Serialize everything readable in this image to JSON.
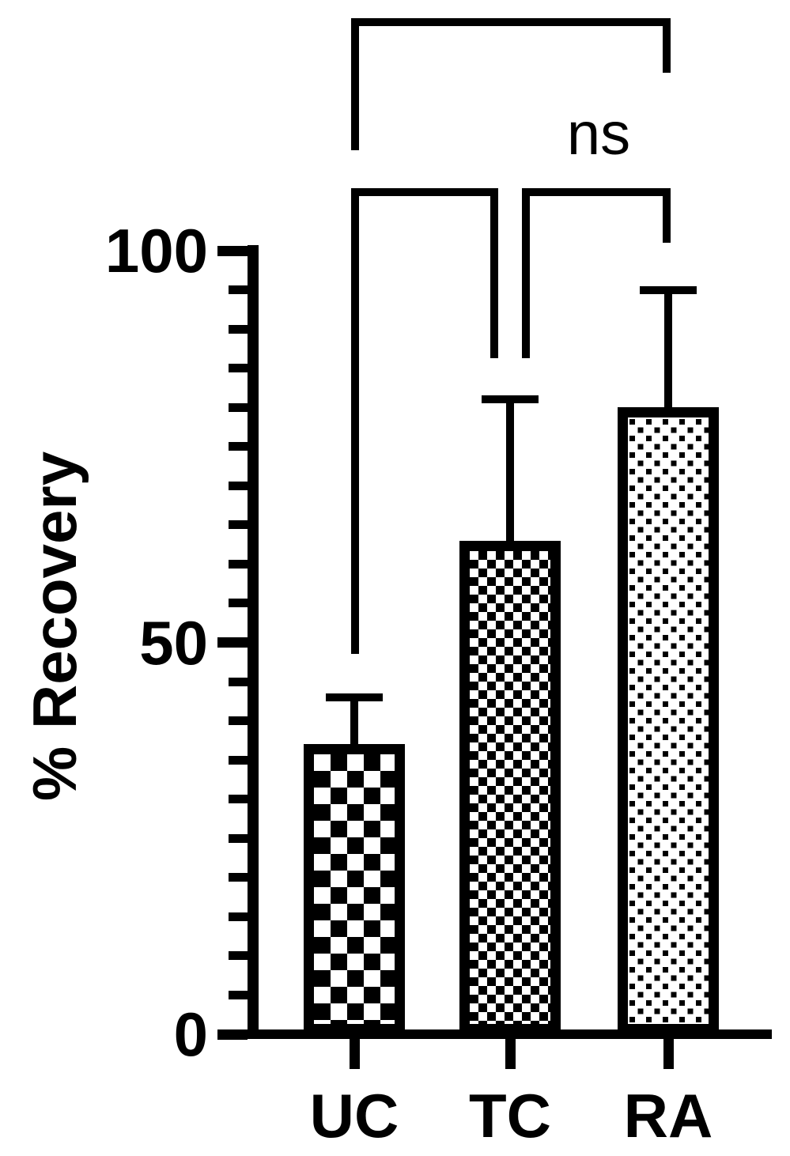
{
  "chart_data": {
    "type": "bar",
    "title": "",
    "ylabel": "% Recovery",
    "categories": [
      "UC",
      "TC",
      "RA"
    ],
    "values": [
      37,
      63,
      80
    ],
    "error_bar_tops": [
      43,
      81,
      95
    ],
    "error_bar_style": "upper only, capped",
    "ylim": [
      0,
      100
    ],
    "ytick_major": [
      0,
      50,
      100
    ],
    "ytick_major_labels": [
      "0",
      "50",
      "100"
    ],
    "ytick_minor_step": 5,
    "grid": false,
    "legend": "none",
    "bar_fill_patterns": [
      "coarse-checkerboard",
      "fine-checkerboard",
      "square-dots"
    ],
    "ink_color": "#000000",
    "background_color": "#ffffff",
    "annotations": [
      {
        "label": "ns",
        "bracket": "UC to RA (top)"
      },
      {
        "label": "",
        "bracket": "UC to TC"
      },
      {
        "label": "",
        "bracket": "TC to RA"
      }
    ]
  },
  "axis": {
    "ylabel": "% Recovery"
  },
  "ns_label": "ns"
}
